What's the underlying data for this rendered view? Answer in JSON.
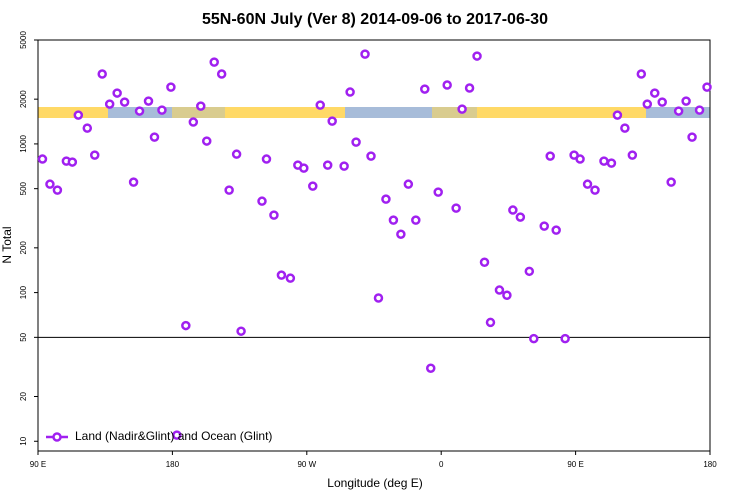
{
  "chart_data": {
    "type": "scatter",
    "title": "55N-60N July (Ver 8)   2014-09-06 to 2017-06-30",
    "xlabel": "Longitude (deg E)",
    "ylabel": "N Total",
    "log_y": true,
    "legend": "bottom-left",
    "xlim": [
      90,
      540
    ],
    "ylim": [
      8.6,
      5000
    ],
    "xticks": [
      {
        "value": 90,
        "label": "90 E"
      },
      {
        "value": 180,
        "label": "180"
      },
      {
        "value": 270,
        "label": "90 W"
      },
      {
        "value": 360,
        "label": "0"
      },
      {
        "value": 450,
        "label": "90 E"
      },
      {
        "value": 540,
        "label": "180"
      }
    ],
    "yticks": [
      10,
      20,
      50,
      100,
      200,
      500,
      1000,
      2000,
      5000
    ],
    "hline": 50,
    "series": [
      {
        "name": "Land (Nadir&Glint) and Ocean (Glint)",
        "color": "#a020f0",
        "x": [
          93,
          98,
          103,
          109,
          113,
          117,
          123,
          128,
          133,
          138,
          143,
          148,
          154,
          158,
          164,
          168,
          173,
          179,
          183,
          189,
          194,
          199,
          203,
          208,
          213,
          218,
          223,
          226,
          240,
          243,
          248,
          253,
          259,
          264,
          268,
          274,
          279,
          284,
          287,
          295,
          299,
          303,
          309,
          313,
          318,
          323,
          328,
          333,
          338,
          343,
          349,
          353,
          358,
          364,
          370,
          374,
          379,
          384,
          389,
          393,
          399,
          404,
          408,
          413,
          419,
          422,
          429,
          433,
          437,
          443,
          449,
          453,
          458,
          463,
          469,
          474,
          478,
          483,
          488,
          494,
          498,
          503,
          508,
          514,
          519,
          524,
          528,
          533,
          538
        ],
        "values": [
          791,
          536,
          489,
          766,
          755,
          1563,
          1277,
          841,
          2951,
          1853,
          2198,
          1910,
          553,
          1663,
          1941,
          1111,
          1687,
          2410,
          11,
          60,
          1403,
          1796,
          1045,
          3550,
          2951,
          489,
          853,
          55,
          412,
          791,
          332,
          131,
          125,
          720,
          687,
          520,
          1824,
          720,
          1423,
          709,
          2233,
          1028,
          4018,
          828,
          92,
          425,
          307,
          247,
          536,
          307,
          2338,
          31,
          474,
          2489,
          370,
          1714,
          2376,
          3898,
          160,
          63,
          104,
          96,
          359,
          322,
          139,
          49,
          280,
          828,
          263,
          49,
          841,
          791,
          536,
          489,
          766,
          743,
          1563,
          1277,
          841,
          2951,
          1853,
          2198,
          1910,
          553,
          1663,
          1941,
          1111,
          1687,
          2410
        ]
      }
    ]
  }
}
